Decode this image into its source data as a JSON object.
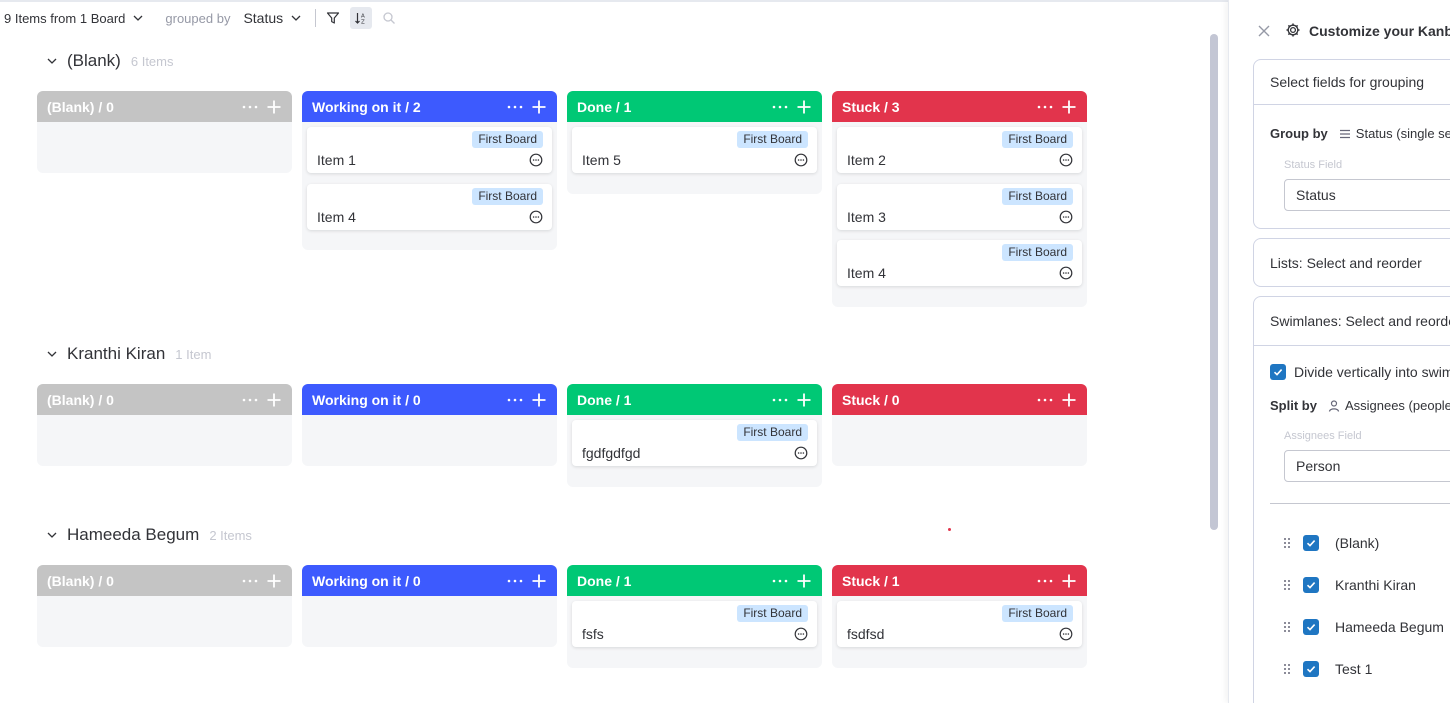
{
  "toolbar": {
    "items_summary": "9 Items from 1 Board",
    "grouped_by_label": "grouped by",
    "grouped_by_value": "Status"
  },
  "groups": [
    {
      "name": "(Blank)",
      "count": "6 Items",
      "columns": [
        {
          "title": "(Blank) / 0",
          "cards": []
        },
        {
          "title": "Working on it / 2",
          "cards": [
            {
              "board": "First Board",
              "name": "Item 1"
            },
            {
              "board": "First Board",
              "name": "Item 4"
            }
          ]
        },
        {
          "title": "Done / 1",
          "cards": [
            {
              "board": "First Board",
              "name": "Item 5"
            }
          ]
        },
        {
          "title": "Stuck / 3",
          "cards": [
            {
              "board": "First Board",
              "name": "Item 2"
            },
            {
              "board": "First Board",
              "name": "Item 3"
            },
            {
              "board": "First Board",
              "name": "Item 4"
            }
          ]
        }
      ]
    },
    {
      "name": "Kranthi Kiran",
      "count": "1 Item",
      "columns": [
        {
          "title": "(Blank) / 0",
          "cards": []
        },
        {
          "title": "Working on it / 0",
          "cards": []
        },
        {
          "title": "Done / 1",
          "cards": [
            {
              "board": "First Board",
              "name": "fgdfgdfgd"
            }
          ]
        },
        {
          "title": "Stuck / 0",
          "cards": []
        }
      ]
    },
    {
      "name": "Hameeda Begum",
      "count": "2 Items",
      "columns": [
        {
          "title": "(Blank) / 0",
          "cards": []
        },
        {
          "title": "Working on it / 0",
          "cards": []
        },
        {
          "title": "Done / 1",
          "cards": [
            {
              "board": "First Board",
              "name": "fsfs"
            }
          ]
        },
        {
          "title": "Stuck / 1",
          "cards": [
            {
              "board": "First Board",
              "name": "fsdfsd"
            }
          ]
        }
      ]
    }
  ],
  "panel": {
    "title": "Customize your Kanban",
    "grouping_header": "Select fields for grouping",
    "group_by_label": "Group by",
    "group_by_value": "Status (single select)",
    "status_field_label": "Status Field",
    "status_field_value": "Status",
    "lists_header": "Lists: Select and reorder",
    "swimlanes_header": "Swimlanes: Select and reorder",
    "divide_label": "Divide vertically into swimlanes",
    "split_by_label": "Split by",
    "split_by_value": "Assignees (people)",
    "assignees_field_label": "Assignees Field",
    "assignees_field_value": "Person",
    "lanes": [
      "(Blank)",
      "Kranthi Kiran",
      "Hameeda Begum",
      "Test 1"
    ]
  },
  "colors": {
    "blank": "#c4c4c4",
    "working": "#3d5afe",
    "done": "#00c875",
    "stuck": "#e2344c",
    "badge": "#cce5ff",
    "checkbox": "#1f76c2"
  }
}
